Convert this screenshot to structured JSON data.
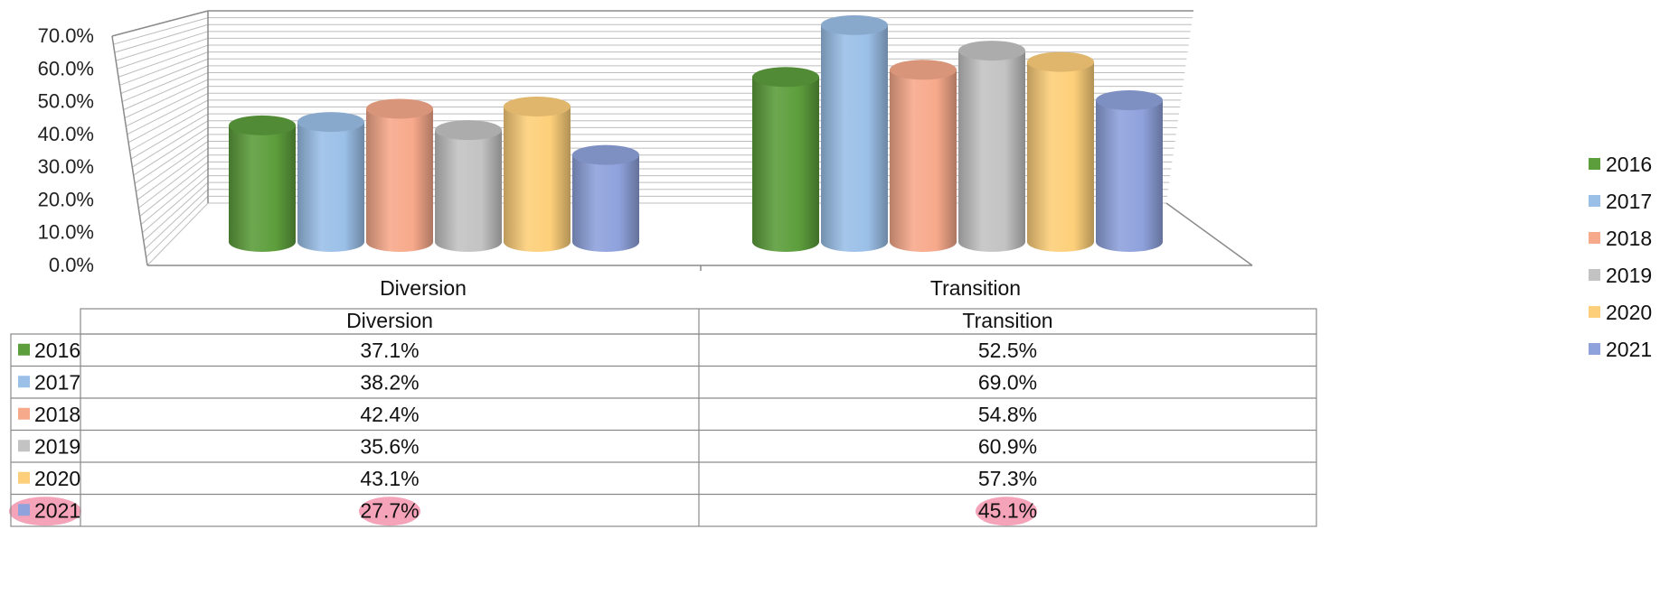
{
  "chart_data": {
    "type": "bar",
    "categories": [
      "Diversion",
      "Transition"
    ],
    "series": [
      {
        "name": "2016",
        "color": "#5d9e3c",
        "values": [
          37.1,
          52.5
        ]
      },
      {
        "name": "2017",
        "color": "#9bc0e8",
        "values": [
          38.2,
          69.0
        ]
      },
      {
        "name": "2018",
        "color": "#f7a98b",
        "values": [
          42.4,
          54.8
        ]
      },
      {
        "name": "2019",
        "color": "#c3c3c3",
        "values": [
          35.6,
          60.9
        ]
      },
      {
        "name": "2020",
        "color": "#fdcf7a",
        "values": [
          43.1,
          57.3
        ]
      },
      {
        "name": "2021",
        "color": "#8fa2dc",
        "values": [
          27.7,
          45.1
        ]
      }
    ],
    "ylim": [
      0,
      70
    ],
    "yticks": [
      "0.0%",
      "10.0%",
      "20.0%",
      "30.0%",
      "40.0%",
      "50.0%",
      "60.0%",
      "70.0%"
    ],
    "data_table": {
      "headers": [
        "Diversion",
        "Transition"
      ],
      "rows": [
        {
          "label": "2016",
          "cells": [
            "37.1%",
            "52.5%"
          ]
        },
        {
          "label": "2017",
          "cells": [
            "38.2%",
            "69.0%"
          ]
        },
        {
          "label": "2018",
          "cells": [
            "42.4%",
            "54.8%"
          ]
        },
        {
          "label": "2019",
          "cells": [
            "35.6%",
            "60.9%"
          ]
        },
        {
          "label": "2020",
          "cells": [
            "43.1%",
            "57.3%"
          ]
        },
        {
          "label": "2021",
          "cells": [
            "27.7%",
            "45.1%"
          ],
          "highlighted": true
        }
      ]
    },
    "highlight_color": "#f4a3b8",
    "legend_position": "right",
    "grid": true,
    "style": "3d-cylinder"
  }
}
